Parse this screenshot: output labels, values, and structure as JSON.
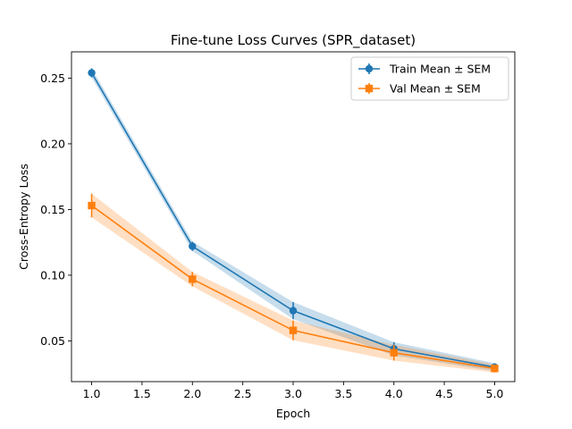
{
  "chart_data": {
    "type": "line",
    "title": "Fine-tune Loss Curves (SPR_dataset)",
    "xlabel": "Epoch",
    "ylabel": "Cross-Entropy Loss",
    "xlim": [
      0.8,
      5.2
    ],
    "ylim": [
      0.019,
      0.27
    ],
    "xticks": [
      1.0,
      1.5,
      2.0,
      2.5,
      3.0,
      3.5,
      4.0,
      4.5,
      5.0
    ],
    "xtick_labels": [
      "1.0",
      "1.5",
      "2.0",
      "2.5",
      "3.0",
      "3.5",
      "4.0",
      "4.5",
      "5.0"
    ],
    "yticks": [
      0.05,
      0.1,
      0.15,
      0.2,
      0.25
    ],
    "ytick_labels": [
      "0.05",
      "0.10",
      "0.15",
      "0.20",
      "0.25"
    ],
    "grid": false,
    "legend_position": "top-right",
    "x": [
      1,
      2,
      3,
      4,
      5
    ],
    "series": [
      {
        "name": "Train Mean ± SEM",
        "marker": "circle",
        "color": "#1f77b4",
        "band_color": "#1f77b4",
        "values": [
          0.254,
          0.122,
          0.073,
          0.044,
          0.03
        ],
        "sem": [
          0.0035,
          0.0035,
          0.0065,
          0.005,
          0.003
        ]
      },
      {
        "name": "Val Mean ± SEM",
        "marker": "square",
        "color": "#ff7f0e",
        "band_color": "#ff7f0e",
        "values": [
          0.153,
          0.097,
          0.058,
          0.041,
          0.029
        ],
        "sem": [
          0.009,
          0.0055,
          0.0075,
          0.006,
          0.003
        ]
      }
    ]
  }
}
